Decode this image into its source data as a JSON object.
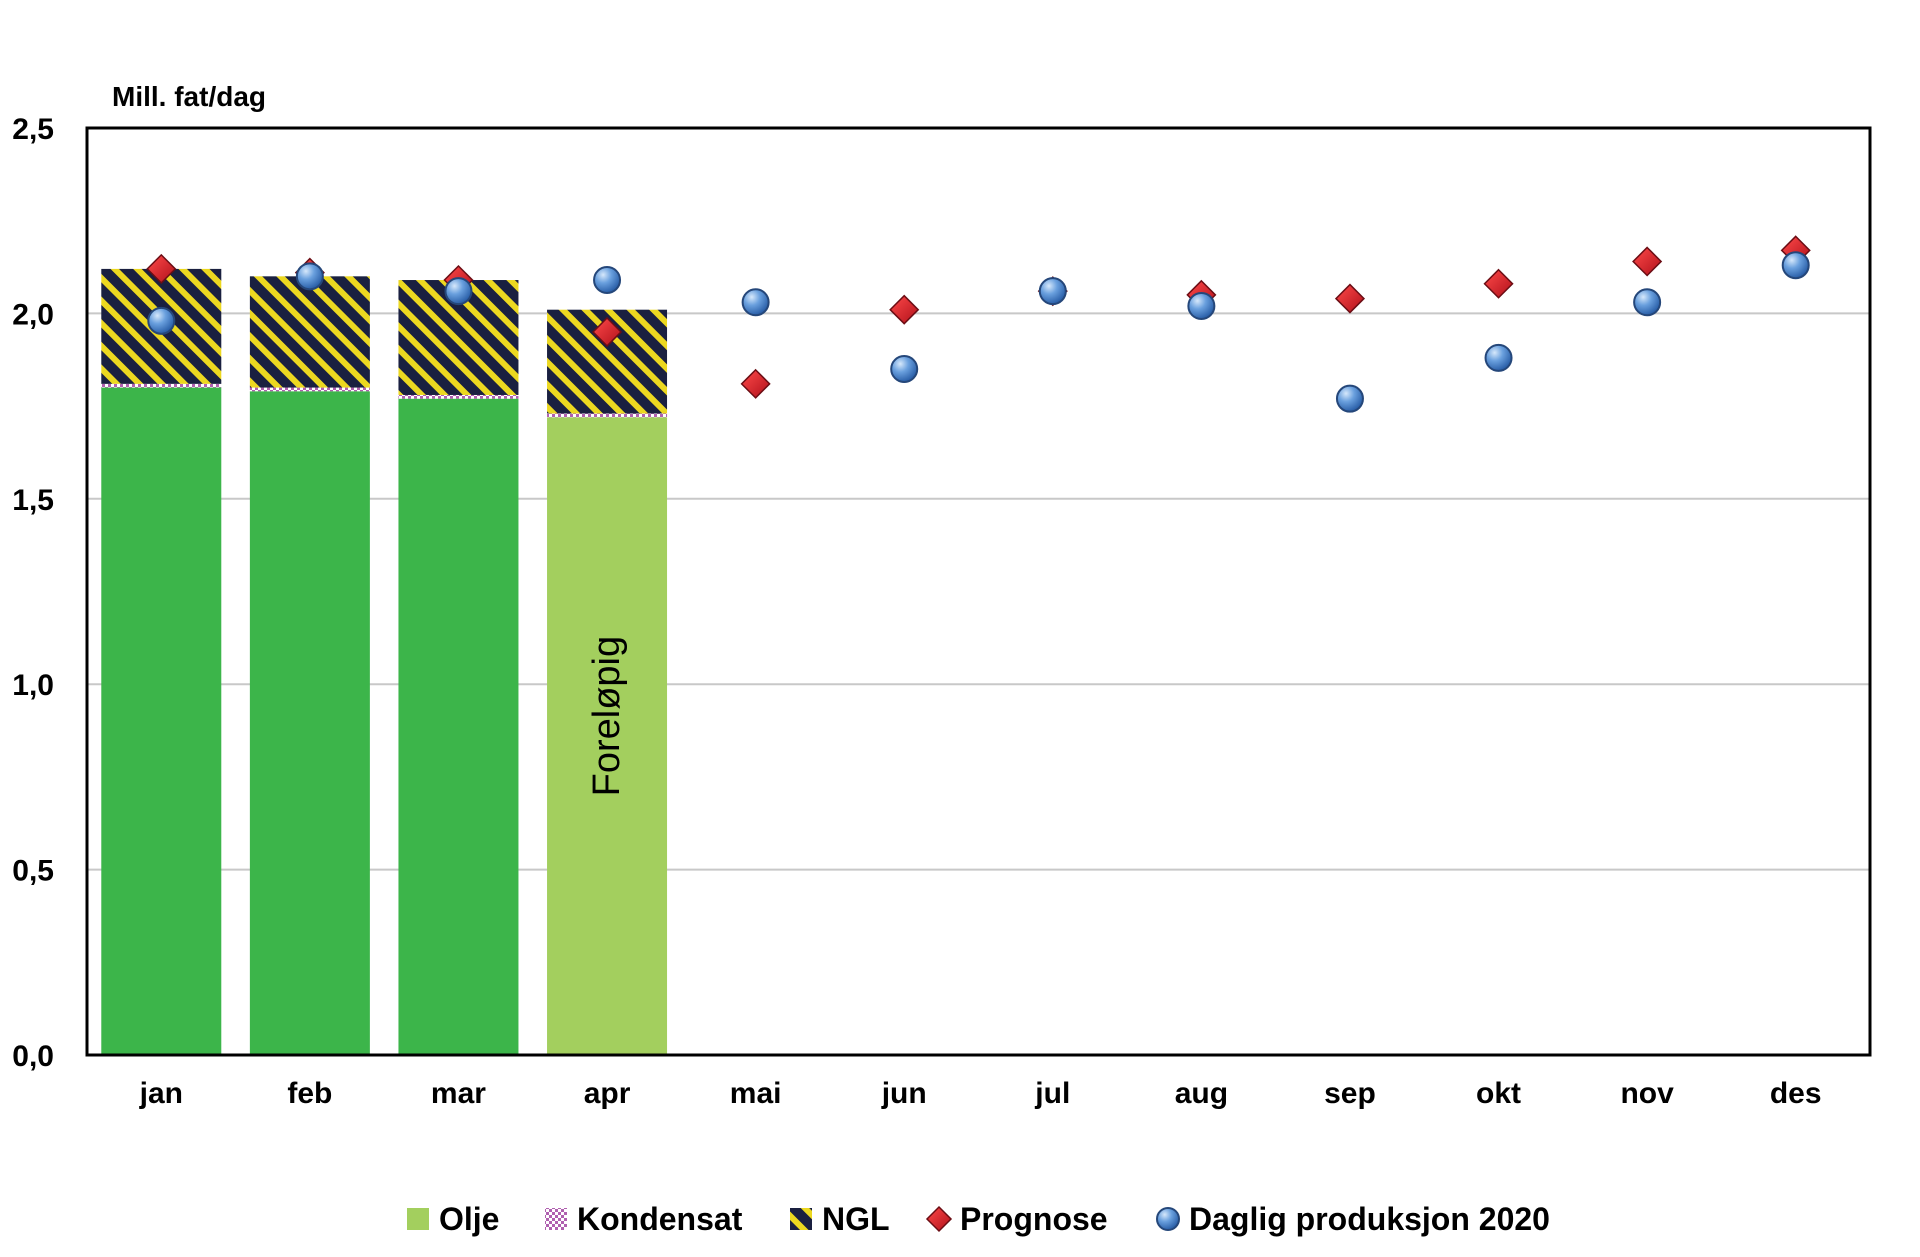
{
  "chart_data": {
    "type": "bar",
    "ylabel": "Mill. fat/dag",
    "ylim": [
      0,
      2.5
    ],
    "yticks": [
      "0,0",
      "0,5",
      "1,0",
      "1,5",
      "2,0",
      "2,5"
    ],
    "ytick_values": [
      0,
      0.5,
      1.0,
      1.5,
      2.0,
      2.5
    ],
    "grid": true,
    "legend_position": "bottom",
    "categories": [
      "jan",
      "feb",
      "mar",
      "apr",
      "mai",
      "jun",
      "jul",
      "aug",
      "sep",
      "okt",
      "nov",
      "des"
    ],
    "stacked_series": [
      {
        "name": "Olje",
        "color": "#3cb54a",
        "values": [
          1.8,
          1.79,
          1.77,
          1.72,
          null,
          null,
          null,
          null,
          null,
          null,
          null,
          null
        ]
      },
      {
        "name": "Kondensat",
        "color": "#c080c0",
        "values": [
          0.01,
          0.01,
          0.01,
          0.01,
          null,
          null,
          null,
          null,
          null,
          null,
          null,
          null
        ]
      },
      {
        "name": "NGL",
        "color": "#1a2040",
        "values": [
          0.31,
          0.3,
          0.31,
          0.28,
          null,
          null,
          null,
          null,
          null,
          null,
          null,
          null
        ]
      }
    ],
    "preliminary_month": "apr",
    "preliminary_color": "#a3cf5e",
    "bar_annotation": "Foreløpig",
    "markers": [
      {
        "name": "Prognose",
        "shape": "diamond",
        "color": "#e0202a",
        "values": [
          2.12,
          2.11,
          2.09,
          1.95,
          1.81,
          2.01,
          2.06,
          2.05,
          2.04,
          2.08,
          2.14,
          2.17
        ]
      },
      {
        "name": "Daglig produksjon 2020",
        "shape": "circle",
        "color": "#4f8fd6",
        "values": [
          1.98,
          2.1,
          2.06,
          2.09,
          2.03,
          1.85,
          2.06,
          2.02,
          1.77,
          1.88,
          2.03,
          2.13
        ]
      }
    ],
    "legend": [
      {
        "label": "Olje",
        "swatch": "olje"
      },
      {
        "label": "Kondensat",
        "swatch": "kondensat"
      },
      {
        "label": "NGL",
        "swatch": "ngl"
      },
      {
        "label": "Prognose",
        "swatch": "diamond"
      },
      {
        "label": "Daglig produksjon 2020",
        "swatch": "circle"
      }
    ]
  }
}
